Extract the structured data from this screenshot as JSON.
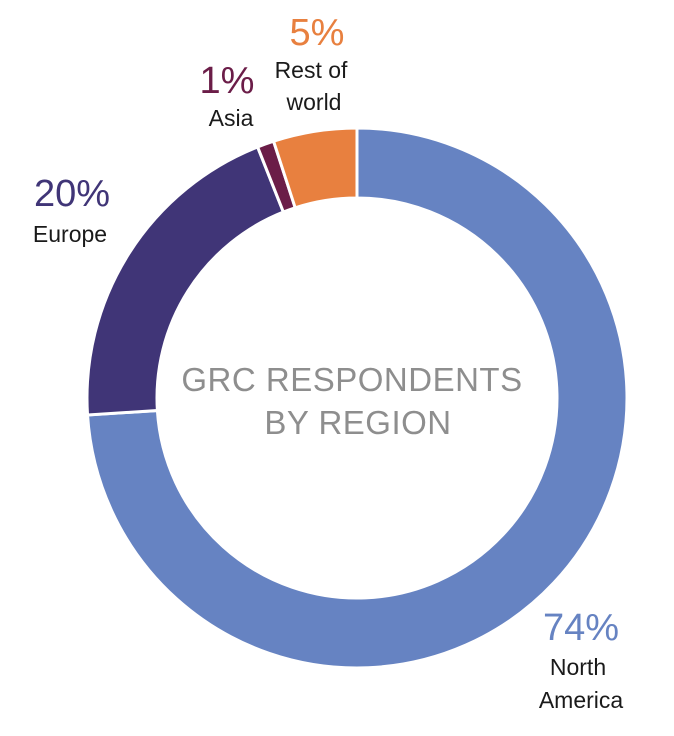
{
  "chart_data": {
    "type": "pie",
    "title": [
      "GRC RESPONDENTS",
      "BY REGION"
    ],
    "slices": [
      {
        "name": "North America",
        "label_lines": [
          "North",
          "America"
        ],
        "value": 74,
        "value_label": "74%",
        "color": "#6683c2"
      },
      {
        "name": "Europe",
        "label_lines": [
          "Europe"
        ],
        "value": 20,
        "value_label": "20%",
        "color": "#403577"
      },
      {
        "name": "Asia",
        "label_lines": [
          "Asia"
        ],
        "value": 1,
        "value_label": "1%",
        "color": "#6b1d48"
      },
      {
        "name": "Rest of world",
        "label_lines": [
          "Rest of",
          "world"
        ],
        "value": 5,
        "value_label": "5%",
        "color": "#e8803f"
      }
    ]
  }
}
